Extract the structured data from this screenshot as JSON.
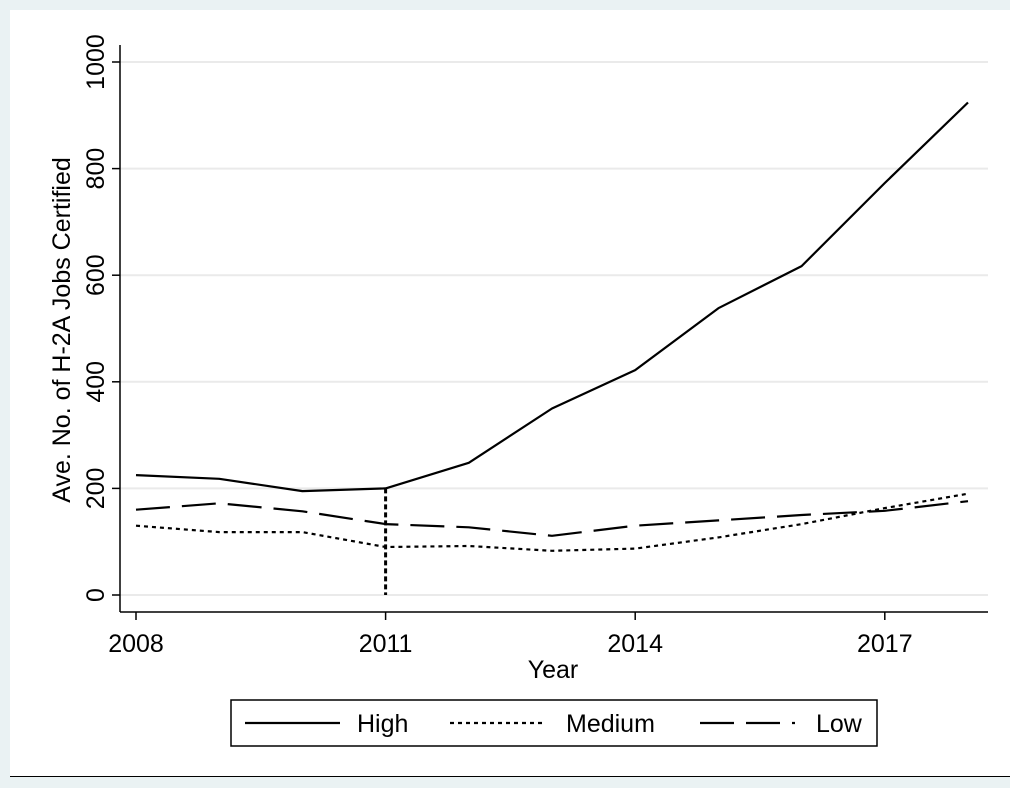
{
  "chart_data": {
    "type": "line",
    "xlabel": "Year",
    "ylabel": "Ave. No. of H-2A Jobs Certified",
    "xlim": [
      2008,
      2018
    ],
    "ylim": [
      0,
      1000
    ],
    "x_ticks": [
      "2008",
      "2011",
      "2014",
      "2017"
    ],
    "y_ticks": [
      "0",
      "200",
      "400",
      "600",
      "800",
      "1000"
    ],
    "grid": "horizontal",
    "legend_position": "bottom",
    "reference_line": {
      "x": 2011,
      "style": "dotted"
    },
    "x": [
      2008,
      2009,
      2010,
      2011,
      2012,
      2013,
      2014,
      2015,
      2016,
      2017,
      2018
    ],
    "series": [
      {
        "name": "High",
        "style": "solid",
        "values": [
          225,
          218,
          195,
          200,
          248,
          350,
          422,
          538,
          617,
          773,
          924
        ]
      },
      {
        "name": "Medium",
        "style": "dotted",
        "values": [
          130,
          118,
          118,
          90,
          92,
          83,
          87,
          108,
          133,
          163,
          190
        ]
      },
      {
        "name": "Low",
        "style": "dashed",
        "values": [
          160,
          172,
          157,
          133,
          127,
          111,
          130,
          140,
          150,
          158,
          176
        ]
      }
    ]
  },
  "colors": {
    "line": "#000000",
    "grid": "#eaeaea",
    "frame_background": "#eaf2f3"
  }
}
